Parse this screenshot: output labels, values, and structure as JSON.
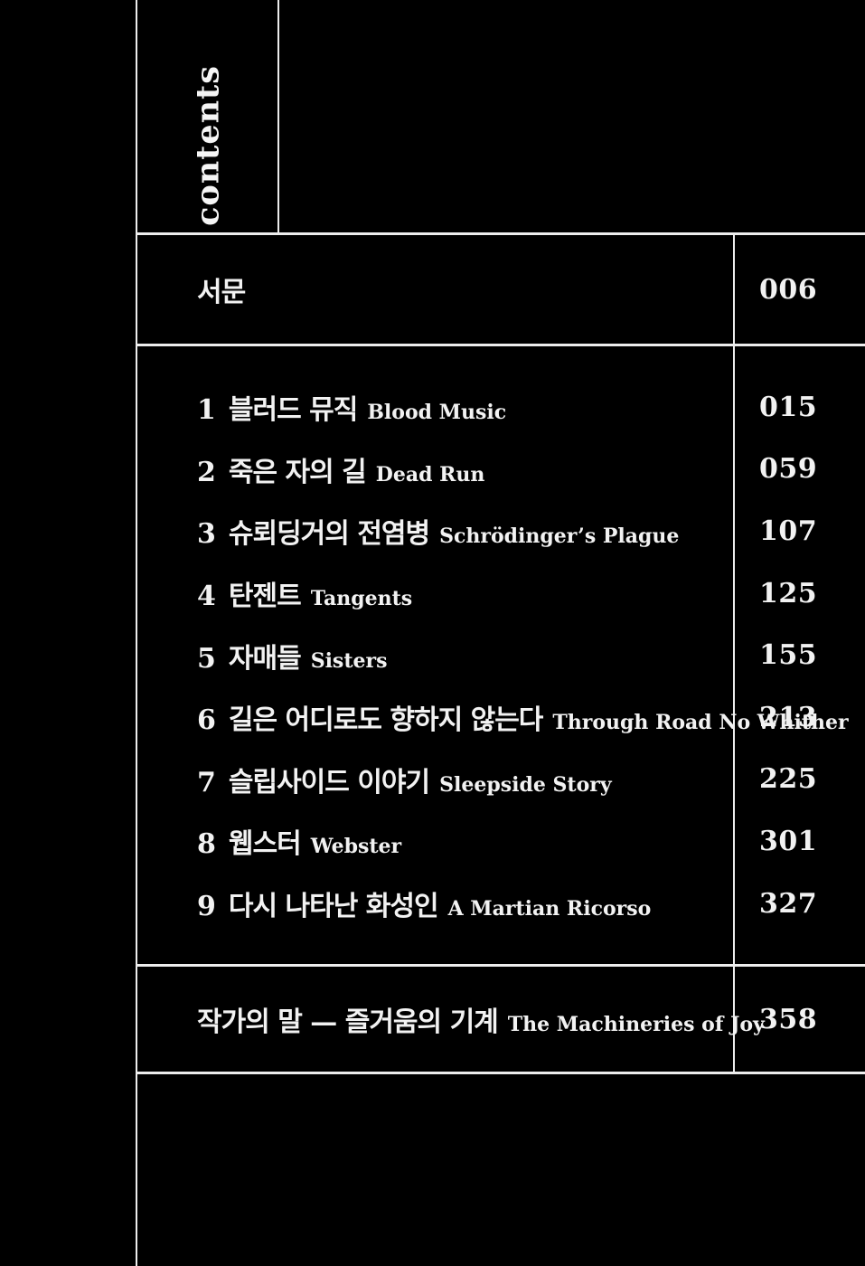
{
  "header": {
    "label": "contents"
  },
  "preface": {
    "title_ko": "서문",
    "page": "006"
  },
  "entries": [
    {
      "num": "1",
      "title_ko": "블러드 뮤직",
      "title_en": "Blood Music",
      "page": "015"
    },
    {
      "num": "2",
      "title_ko": "죽은 자의 길",
      "title_en": "Dead Run",
      "page": "059"
    },
    {
      "num": "3",
      "title_ko": "슈뢰딩거의 전염병",
      "title_en": "Schrödinger’s Plague",
      "page": "107"
    },
    {
      "num": "4",
      "title_ko": "탄젠트",
      "title_en": "Tangents",
      "page": "125"
    },
    {
      "num": "5",
      "title_ko": "자매들",
      "title_en": "Sisters",
      "page": "155"
    },
    {
      "num": "6",
      "title_ko": "길은 어디로도 향하지 않는다",
      "title_en": "Through Road No Whither",
      "page": "213"
    },
    {
      "num": "7",
      "title_ko": "슬립사이드 이야기",
      "title_en": "Sleepside Story",
      "page": "225"
    },
    {
      "num": "8",
      "title_ko": "웹스터",
      "title_en": "Webster",
      "page": "301"
    },
    {
      "num": "9",
      "title_ko": "다시 나타난 화성인",
      "title_en": "A Martian Ricorso",
      "page": "327"
    }
  ],
  "afterword": {
    "title_ko": "작가의 말 — 즐거움의 기계",
    "title_en": "The Machineries of Joy",
    "page": "358"
  },
  "colors": {
    "background": "#000000",
    "text": "#f2f2f2",
    "line": "#ededed"
  }
}
